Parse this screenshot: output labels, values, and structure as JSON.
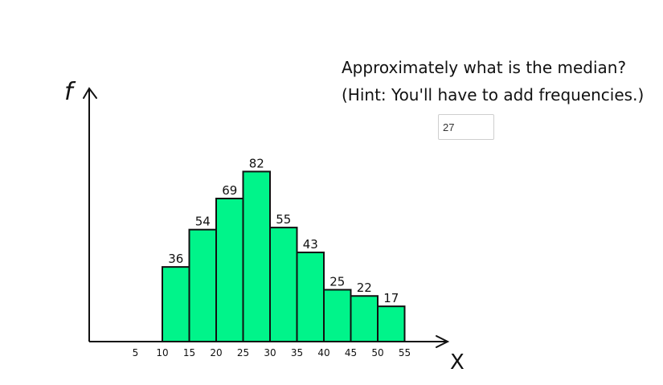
{
  "question": {
    "line1": "Approximately what is the median?",
    "line2": "(Hint: You'll have to add frequencies.)"
  },
  "answer_input": {
    "value": "27"
  },
  "colors": {
    "bar_fill": "#00f48a",
    "bar_stroke": "#111111",
    "axis": "#111111"
  },
  "chart_data": {
    "type": "bar",
    "subtype": "histogram",
    "ylabel": "f",
    "xlabel": "X",
    "x_ticks": [
      5,
      10,
      15,
      20,
      25,
      30,
      35,
      40,
      45,
      50,
      55
    ],
    "bins": [
      {
        "start": 10,
        "end": 15,
        "value": 36
      },
      {
        "start": 15,
        "end": 20,
        "value": 54
      },
      {
        "start": 20,
        "end": 25,
        "value": 69
      },
      {
        "start": 25,
        "end": 30,
        "value": 82
      },
      {
        "start": 30,
        "end": 35,
        "value": 55
      },
      {
        "start": 35,
        "end": 40,
        "value": 43
      },
      {
        "start": 40,
        "end": 45,
        "value": 25
      },
      {
        "start": 45,
        "end": 50,
        "value": 22
      },
      {
        "start": 50,
        "end": 55,
        "value": 17
      }
    ],
    "ylim": [
      0,
      100
    ],
    "grid": false,
    "legend": "none"
  }
}
